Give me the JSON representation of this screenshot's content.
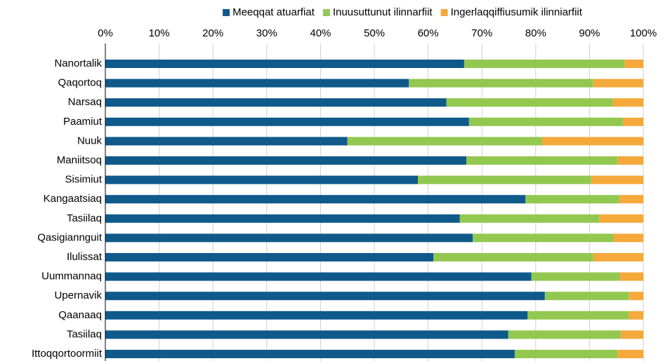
{
  "chart_data": {
    "type": "stacked_barh",
    "categories": [
      "Nanortalik",
      "Qaqortoq",
      "Narsaq",
      "Paamiut",
      "Nuuk",
      "Maniitsoq",
      "Sisimiut",
      "Kangaatsiaq",
      "Tasiilaq",
      "Qasigiannguit",
      "Ilulissat",
      "Uummannaq",
      "Upernavik",
      "Qaanaaq",
      "Tasiilaq",
      "Ittoqqortoormiit"
    ],
    "series": [
      {
        "name": "Meeqqat atuarfiat",
        "color": "#0f5a8b",
        "values": [
          66.7,
          56.4,
          63.4,
          67.6,
          45.0,
          67.1,
          58.1,
          78.1,
          65.9,
          68.3,
          61.0,
          79.2,
          81.7,
          78.5,
          74.9,
          76.1
        ]
      },
      {
        "name": "Inuusuttunut ilinnarfiit",
        "color": "#92c850",
        "values": [
          29.8,
          34.3,
          30.9,
          28.6,
          36.2,
          28.1,
          32.2,
          17.5,
          25.9,
          26.2,
          29.7,
          16.5,
          15.6,
          18.8,
          20.9,
          19.1
        ]
      },
      {
        "name": "Ingerlaqqiffiusumik ilinniarfiit",
        "color": "#f5a93b",
        "values": [
          3.5,
          9.3,
          5.7,
          3.8,
          18.8,
          4.8,
          9.7,
          4.4,
          8.2,
          5.5,
          9.3,
          4.3,
          2.7,
          2.7,
          4.2,
          4.8
        ]
      }
    ],
    "xlim": [
      0,
      100
    ],
    "xticks": [
      {
        "value": 0,
        "label": "0%"
      },
      {
        "value": 10,
        "label": "10%"
      },
      {
        "value": 20,
        "label": "20%"
      },
      {
        "value": 30,
        "label": "30%"
      },
      {
        "value": 40,
        "label": "40%"
      },
      {
        "value": 50,
        "label": "50%"
      },
      {
        "value": 60,
        "label": "60%"
      },
      {
        "value": 70,
        "label": "70%"
      },
      {
        "value": 80,
        "label": "80%"
      },
      {
        "value": 90,
        "label": "90%"
      },
      {
        "value": 100,
        "label": "100%"
      }
    ],
    "grid": true,
    "legend": "top"
  }
}
